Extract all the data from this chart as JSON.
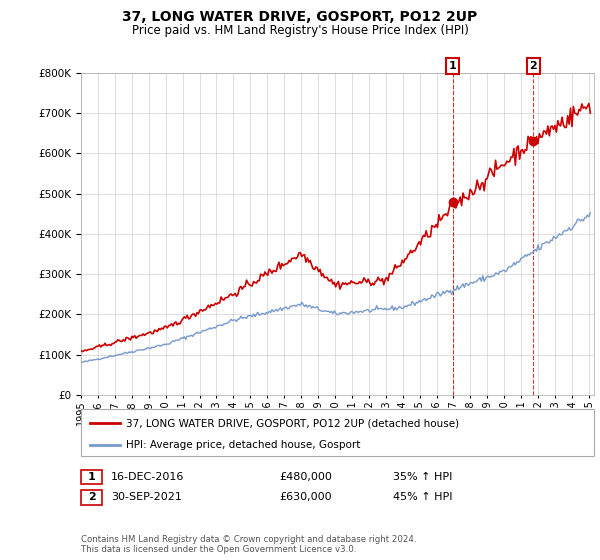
{
  "title": "37, LONG WATER DRIVE, GOSPORT, PO12 2UP",
  "subtitle": "Price paid vs. HM Land Registry's House Price Index (HPI)",
  "legend_line1": "37, LONG WATER DRIVE, GOSPORT, PO12 2UP (detached house)",
  "legend_line2": "HPI: Average price, detached house, Gosport",
  "annotation1_label": "1",
  "annotation1_date": "16-DEC-2016",
  "annotation1_price": 480000,
  "annotation1_hpi": "35% ↑ HPI",
  "annotation2_label": "2",
  "annotation2_date": "30-SEP-2021",
  "annotation2_price": 630000,
  "annotation2_hpi": "45% ↑ HPI",
  "footer": "Contains HM Land Registry data © Crown copyright and database right 2024.\nThis data is licensed under the Open Government Licence v3.0.",
  "house_color": "#cc0000",
  "hpi_color": "#7799cc",
  "annotation_box_color": "#cc0000",
  "dashed_line_color": "#cc0000",
  "ylim_min": 0,
  "ylim_max": 800000,
  "year_start": 1995,
  "year_end": 2025
}
